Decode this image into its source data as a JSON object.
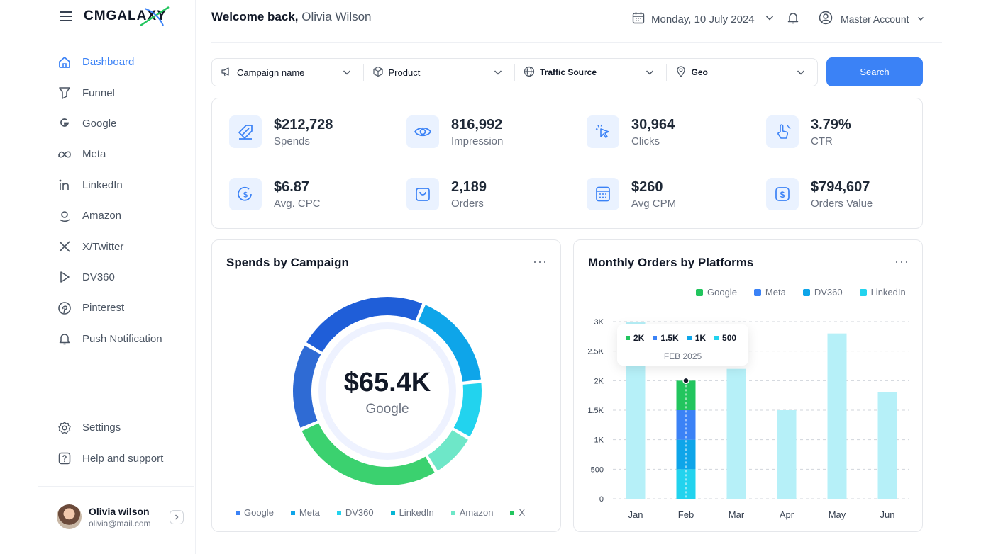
{
  "brand": {
    "name": "CMGALAXY"
  },
  "sidebar": {
    "items": [
      {
        "label": "Dashboard",
        "icon": "home-icon",
        "active": true
      },
      {
        "label": "Funnel",
        "icon": "funnel-icon"
      },
      {
        "label": "Google",
        "icon": "google-icon"
      },
      {
        "label": "Meta",
        "icon": "meta-icon"
      },
      {
        "label": "LinkedIn",
        "icon": "linkedin-icon"
      },
      {
        "label": "Amazon",
        "icon": "amazon-icon"
      },
      {
        "label": "X/Twitter",
        "icon": "x-twitter-icon"
      },
      {
        "label": "DV360",
        "icon": "dv360-icon"
      },
      {
        "label": "Pinterest",
        "icon": "pinterest-icon"
      },
      {
        "label": "Push Notification",
        "icon": "bell-icon"
      }
    ],
    "bottom": [
      {
        "label": "Settings",
        "icon": "gear-icon"
      },
      {
        "label": "Help and support",
        "icon": "help-icon"
      }
    ],
    "user": {
      "name": "Olivia wilson",
      "email": "olivia@mail.com"
    }
  },
  "header": {
    "welcome": "Welcome back,",
    "user_name": "Olivia Wilson",
    "date": "Monday, 10 July 2024",
    "account": "Master Account"
  },
  "filters": {
    "campaign": "Campaign name",
    "product": "Product",
    "traffic": "Traffic Source",
    "geo": "Geo",
    "search_label": "Search"
  },
  "stats": [
    {
      "value": "$212,728",
      "label": "Spends",
      "icon": "coupon-icon"
    },
    {
      "value": "816,992",
      "label": "Impression",
      "icon": "eye-icon"
    },
    {
      "value": "30,964",
      "label": "Clicks",
      "icon": "cursor-click-icon"
    },
    {
      "value": "3.79%",
      "label": "CTR",
      "icon": "tap-percent-icon"
    },
    {
      "value": "$6.87",
      "label": "Avg. CPC",
      "icon": "coin-icon"
    },
    {
      "value": "2,189",
      "label": "Orders",
      "icon": "bag-icon"
    },
    {
      "value": "$260",
      "label": "Avg CPM",
      "icon": "calculator-icon"
    },
    {
      "value": "$794,607",
      "label": "Orders Value",
      "icon": "dollar-box-icon"
    }
  ],
  "spends_card": {
    "title": "Spends by Campaign",
    "more": "···",
    "center_value": "$65.4K",
    "center_label": "Google"
  },
  "orders_card": {
    "title": "Monthly Orders by Platforms",
    "more": "···",
    "tooltip": {
      "items": [
        {
          "value": "2K",
          "color": "#22c55e"
        },
        {
          "value": "1.5K",
          "color": "#3b82f6"
        },
        {
          "value": "1K",
          "color": "#0ea5e9"
        },
        {
          "value": "500",
          "color": "#22d3ee"
        }
      ],
      "date": "FEB 2025"
    }
  },
  "colors": {
    "accent": "#3b82f6",
    "google": "#22c55e",
    "meta": "#3b82f6",
    "dv360": "#0ea5e9",
    "linkedin": "#22d3ee",
    "bar_light": "#b6f0f8"
  },
  "chart_data": [
    {
      "type": "pie",
      "title": "Spends by Campaign",
      "categories": [
        "Google",
        "Meta",
        "DV360",
        "LinkedIn",
        "Amazon",
        "X"
      ],
      "values": [
        15,
        23,
        17,
        10,
        8,
        27
      ],
      "ring_order": [
        "Meta",
        "DV360",
        "LinkedIn",
        "Amazon",
        "X",
        "Google"
      ],
      "colors": [
        "#3b82f6",
        "#0ea5e9",
        "#22d3ee",
        "#06b6d4",
        "#6ee7c8",
        "#22c55e"
      ],
      "ring_colors": [
        "#1f5ed8",
        "#0ea5e9",
        "#22d3ee",
        "#6ee7c8",
        "#3bd16f",
        "#2f6bd4"
      ],
      "center_value": "$65.4K",
      "center_label": "Google"
    },
    {
      "type": "bar",
      "title": "Monthly Orders by Platforms",
      "categories": [
        "Jan",
        "Feb",
        "Mar",
        "Apr",
        "May",
        "Jun"
      ],
      "series": [
        {
          "name": "Google",
          "color": "#22c55e"
        },
        {
          "name": "Meta",
          "color": "#3b82f6"
        },
        {
          "name": "DV360",
          "color": "#0ea5e9"
        },
        {
          "name": "LinkedIn",
          "color": "#22d3ee"
        }
      ],
      "totals": [
        3000,
        2000,
        2200,
        1500,
        2800,
        1800
      ],
      "highlight": {
        "category": "Feb",
        "stack": [
          {
            "series": "LinkedIn",
            "value": 500
          },
          {
            "series": "DV360",
            "value": 500
          },
          {
            "series": "Meta",
            "value": 500
          },
          {
            "series": "Google",
            "value": 500
          }
        ]
      },
      "yticks": [
        0,
        500,
        1000,
        1500,
        2000,
        2500,
        3000
      ],
      "ytick_labels": [
        "0",
        "500",
        "1K",
        "1.5K",
        "2K",
        "2.5K",
        "3K"
      ],
      "ylim": [
        0,
        3000
      ]
    }
  ]
}
